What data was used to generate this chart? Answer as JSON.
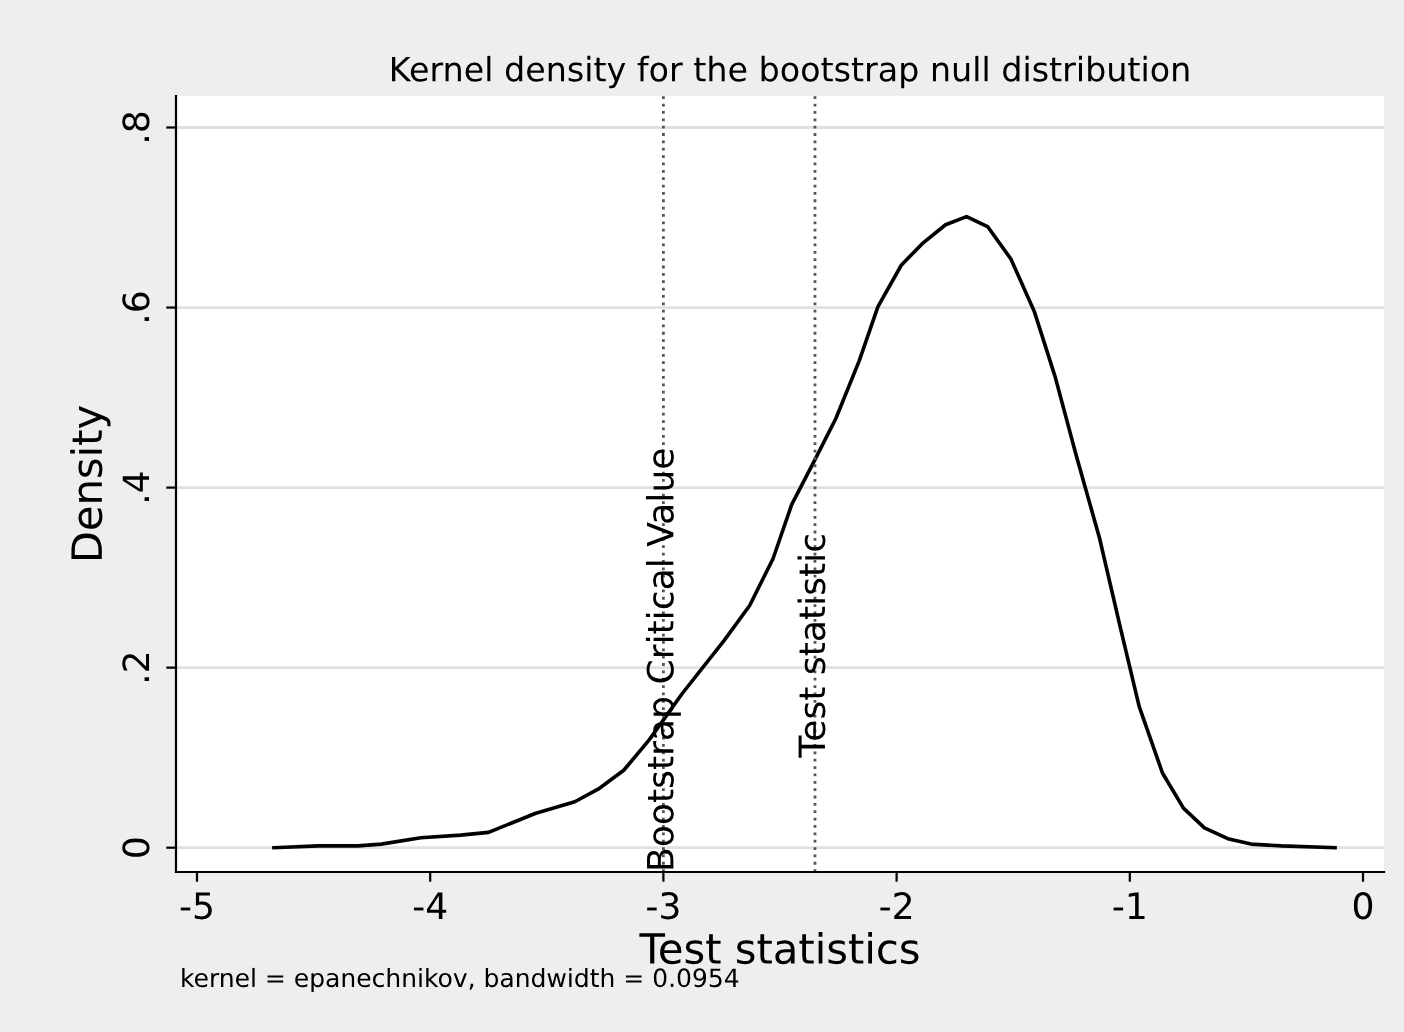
{
  "chart_data": {
    "type": "line",
    "title": "Kernel density for the bootstrap null distribution",
    "xlabel": "Test statistics",
    "ylabel": "Density",
    "x": [
      -4.67,
      -4.48,
      -4.31,
      -4.21,
      -4.04,
      -3.87,
      -3.75,
      -3.55,
      -3.38,
      -3.28,
      -3.17,
      -3.06,
      -2.92,
      -2.74,
      -2.63,
      -2.53,
      -2.45,
      -2.35,
      -2.26,
      -2.16,
      -2.08,
      -1.98,
      -1.89,
      -1.79,
      -1.7,
      -1.61,
      -1.51,
      -1.41,
      -1.32,
      -1.23,
      -1.13,
      -1.04,
      -0.96,
      -0.86,
      -0.77,
      -0.68,
      -0.58,
      -0.48,
      -0.35,
      -0.12
    ],
    "series": [
      {
        "color": "#000000",
        "values": [
          0,
          0.002,
          0.002,
          0.004,
          0.011,
          0.014,
          0.017,
          0.038,
          0.051,
          0.065,
          0.086,
          0.12,
          0.171,
          0.23,
          0.269,
          0.321,
          0.381,
          0.431,
          0.477,
          0.541,
          0.601,
          0.647,
          0.671,
          0.692,
          0.701,
          0.69,
          0.654,
          0.596,
          0.523,
          0.436,
          0.344,
          0.244,
          0.157,
          0.083,
          0.044,
          0.022,
          0.01,
          0.004,
          0.002,
          0
        ]
      }
    ],
    "xlim": [
      -5.09,
      0.09
    ],
    "xticks": [
      -5,
      -4,
      -3,
      -2,
      -1,
      0
    ],
    "ylim": [
      -0.027,
      0.835
    ],
    "yticks": [
      {
        "value": 0,
        "label": "0"
      },
      {
        "value": 0.2,
        "label": ".2"
      },
      {
        "value": 0.4,
        "label": ".4"
      },
      {
        "value": 0.6,
        "label": ".6"
      },
      {
        "value": 0.8,
        "label": ".8"
      }
    ],
    "ref_lines": [
      {
        "axis": "x",
        "value": -3.0,
        "label": "Bootstrap Critical Value",
        "color": "#555555",
        "line_style": "dotted"
      },
      {
        "axis": "x",
        "value": -2.35,
        "label": "Test statistic",
        "color": "#555555",
        "line_style": "dotted"
      }
    ],
    "annotations": [
      "kernel = epanechnikov, bandwidth = 0.0954"
    ],
    "grid": "y",
    "legend": false,
    "marker": "none",
    "line_style": "solid"
  }
}
